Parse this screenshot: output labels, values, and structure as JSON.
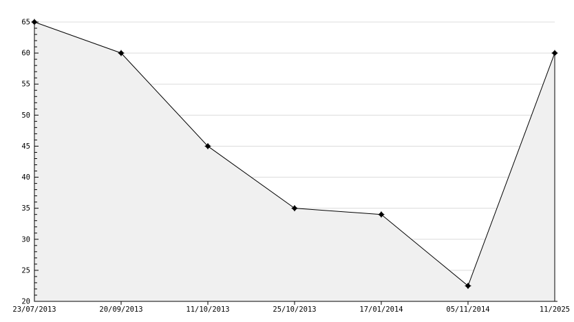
{
  "chart_data": {
    "type": "area",
    "title": "",
    "xlabel": "",
    "ylabel": "",
    "categories": [
      "23/07/2013",
      "20/09/2013",
      "11/10/2013",
      "25/10/2013",
      "17/01/2014",
      "05/11/2014",
      "11/2025"
    ],
    "values": [
      65,
      60,
      45,
      35,
      34,
      22.5,
      60
    ],
    "ylim": [
      20,
      65
    ],
    "y_major_ticks": [
      20,
      25,
      30,
      35,
      40,
      45,
      50,
      55,
      60,
      65
    ],
    "y_minor_step": 1,
    "grid": "horizontal-only",
    "legend_position": "none",
    "marker": "black-star",
    "colors": {
      "background": "#ffffff",
      "line": "#000000",
      "area_fill": "#f0f0f0",
      "gridline": "#dcdcdc",
      "axis": "#000000",
      "text": "#000000"
    }
  }
}
